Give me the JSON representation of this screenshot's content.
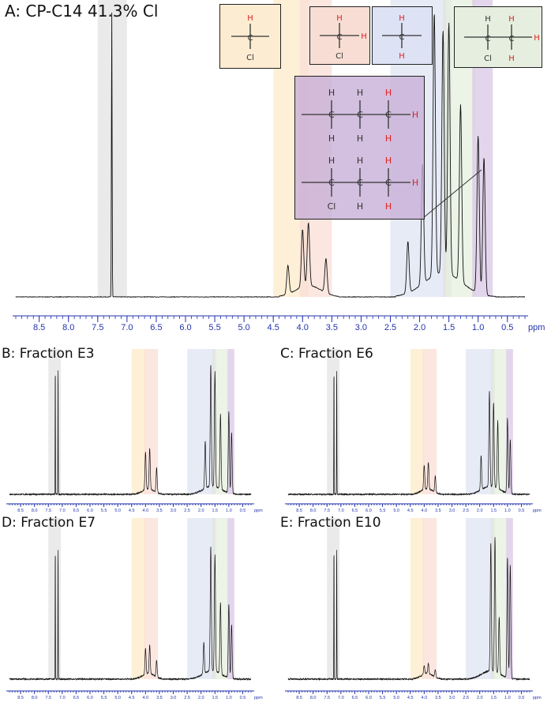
{
  "colors": {
    "residual_solvent": "#e3e3e3",
    "ch_cl": "#fdebc8",
    "ch2_cl": "#f9ddd5",
    "ch2": "#dfe4f3",
    "ch3_adjacent_chcl": "#e6efdf",
    "ch3": "#d9c8e6",
    "axis": "#2233aa",
    "trace": "#111111"
  },
  "atoms": {
    "H": "H",
    "Cl": "Cl"
  },
  "chart_data": [
    {
      "id": "A",
      "type": "line",
      "title": "A: CP-C14 41.3% Cl",
      "xlabel": "ppm",
      "x_reversed": true,
      "xlim": [
        8.9,
        0.2
      ],
      "xticks": [
        "8.5",
        "8.0",
        "7.5",
        "7.0",
        "6.5",
        "6.0",
        "5.5",
        "5.0",
        "4.5",
        "4.0",
        "3.5",
        "3.0",
        "2.5",
        "2.0",
        "1.5",
        "1.0",
        "0.5"
      ],
      "regions": [
        [
          7.5,
          7.0
        ],
        [
          4.5,
          3.9
        ],
        [
          4.05,
          3.5
        ],
        [
          2.5,
          1.5
        ],
        [
          1.6,
          1.45
        ],
        [
          1.55,
          1.05
        ],
        [
          1.1,
          0.75
        ]
      ],
      "peaks": [
        [
          7.26,
          1.0
        ],
        [
          4.25,
          0.1
        ],
        [
          4.0,
          0.2
        ],
        [
          3.9,
          0.22
        ],
        [
          3.6,
          0.12
        ],
        [
          2.2,
          0.18
        ],
        [
          1.95,
          0.42
        ],
        [
          1.75,
          0.92
        ],
        [
          1.6,
          0.85
        ],
        [
          1.5,
          0.88
        ],
        [
          1.3,
          0.62
        ],
        [
          1.0,
          0.55
        ],
        [
          0.9,
          0.48
        ]
      ],
      "annotation": "CHCl / CH2Cl / CH2 / CH3 proton assignments"
    },
    {
      "id": "B",
      "type": "line",
      "title": "B: Fraction E3",
      "xlabel": "ppm",
      "x_reversed": true,
      "xlim": [
        8.9,
        0.2
      ],
      "xticks": [
        "8.5",
        "8.0",
        "7.5",
        "7.0",
        "6.5",
        "6.0",
        "5.5",
        "5.0",
        "4.5",
        "4.0",
        "3.5",
        "3.0",
        "2.5",
        "2.0",
        "1.5",
        "1.0",
        "0.5"
      ],
      "regions": [
        [
          7.5,
          7.05
        ],
        [
          4.5,
          4.0
        ],
        [
          4.05,
          3.55
        ],
        [
          2.5,
          1.55
        ],
        [
          1.6,
          1.45
        ],
        [
          1.5,
          1.05
        ],
        [
          1.05,
          0.8
        ]
      ],
      "peaks": [
        [
          7.25,
          1.0
        ],
        [
          7.15,
          1.0
        ],
        [
          4.0,
          0.28
        ],
        [
          3.85,
          0.3
        ],
        [
          3.6,
          0.18
        ],
        [
          1.85,
          0.35
        ],
        [
          1.65,
          0.9
        ],
        [
          1.5,
          0.85
        ],
        [
          1.3,
          0.55
        ],
        [
          1.0,
          0.6
        ],
        [
          0.9,
          0.45
        ]
      ]
    },
    {
      "id": "C",
      "type": "line",
      "title": "C: Fraction E6",
      "xlabel": "ppm",
      "x_reversed": true,
      "xlim": [
        8.9,
        0.2
      ],
      "xticks": [
        "8.5",
        "8.0",
        "7.5",
        "7.0",
        "6.5",
        "6.0",
        "5.5",
        "5.0",
        "4.5",
        "4.0",
        "3.5",
        "3.0",
        "2.5",
        "2.0",
        "1.5",
        "1.0",
        "0.5"
      ],
      "regions": [
        [
          7.5,
          7.05
        ],
        [
          4.5,
          4.0
        ],
        [
          4.05,
          3.55
        ],
        [
          2.5,
          1.55
        ],
        [
          1.6,
          1.45
        ],
        [
          1.5,
          1.05
        ],
        [
          1.05,
          0.8
        ]
      ],
      "peaks": [
        [
          7.25,
          1.0
        ],
        [
          7.15,
          1.0
        ],
        [
          4.0,
          0.18
        ],
        [
          3.85,
          0.2
        ],
        [
          3.6,
          0.12
        ],
        [
          1.95,
          0.25
        ],
        [
          1.65,
          0.7
        ],
        [
          1.5,
          0.62
        ],
        [
          1.35,
          0.5
        ],
        [
          1.0,
          0.55
        ],
        [
          0.9,
          0.4
        ]
      ]
    },
    {
      "id": "D",
      "type": "line",
      "title": "D: Fraction E7",
      "xlabel": "ppm",
      "x_reversed": true,
      "xlim": [
        8.9,
        0.2
      ],
      "xticks": [
        "8.5",
        "8.0",
        "7.5",
        "7.0",
        "6.5",
        "6.0",
        "5.5",
        "5.0",
        "4.5",
        "4.0",
        "3.5",
        "3.0",
        "2.5",
        "2.0",
        "1.5",
        "1.0",
        "0.5"
      ],
      "regions": [
        [
          7.5,
          7.05
        ],
        [
          4.5,
          4.0
        ],
        [
          4.05,
          3.55
        ],
        [
          2.5,
          1.55
        ],
        [
          1.6,
          1.45
        ],
        [
          1.5,
          1.05
        ],
        [
          1.05,
          0.8
        ]
      ],
      "peaks": [
        [
          7.25,
          1.0
        ],
        [
          7.15,
          1.0
        ],
        [
          4.0,
          0.18
        ],
        [
          3.85,
          0.2
        ],
        [
          3.6,
          0.12
        ],
        [
          1.9,
          0.22
        ],
        [
          1.65,
          0.88
        ],
        [
          1.5,
          0.82
        ],
        [
          1.3,
          0.5
        ],
        [
          1.0,
          0.52
        ],
        [
          0.9,
          0.38
        ]
      ]
    },
    {
      "id": "E",
      "type": "line",
      "title": "E: Fraction E10",
      "xlabel": "ppm",
      "x_reversed": true,
      "xlim": [
        8.9,
        0.2
      ],
      "xticks": [
        "8.5",
        "8.0",
        "7.5",
        "7.0",
        "6.5",
        "6.0",
        "5.5",
        "5.0",
        "4.5",
        "4.0",
        "3.5",
        "3.0",
        "2.5",
        "2.0",
        "1.5",
        "1.0",
        "0.5"
      ],
      "regions": [
        [
          7.5,
          7.05
        ],
        [
          4.5,
          4.0
        ],
        [
          4.05,
          3.55
        ],
        [
          2.5,
          1.55
        ],
        [
          1.6,
          1.45
        ],
        [
          1.5,
          1.05
        ],
        [
          1.05,
          0.8
        ]
      ],
      "peaks": [
        [
          7.25,
          1.0
        ],
        [
          7.15,
          1.0
        ],
        [
          4.0,
          0.06
        ],
        [
          3.85,
          0.07
        ],
        [
          3.6,
          0.05
        ],
        [
          1.6,
          0.9
        ],
        [
          1.45,
          0.95
        ],
        [
          1.3,
          0.4
        ],
        [
          1.0,
          0.85
        ],
        [
          0.9,
          0.8
        ]
      ]
    }
  ]
}
